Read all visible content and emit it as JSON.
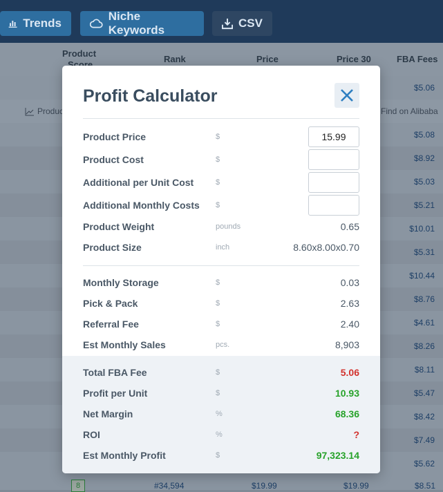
{
  "toolbar": {
    "trends_label": "Trends",
    "niche_label": "Niche Keywords",
    "csv_label": "CSV"
  },
  "table": {
    "headers": {
      "product_score_line1": "Product",
      "product_score_line2": "Score",
      "rank": "Rank",
      "price": "Price",
      "price30": "Price 30",
      "fba_fees": "FBA Fees"
    },
    "tools_row": {
      "product_link": "Produc",
      "alibaba": "Find on Alibaba"
    },
    "fba_fees": [
      "$5.06",
      "$5.08",
      "$8.92",
      "$5.03",
      "$5.21",
      "$10.01",
      "$5.31",
      "$10.44",
      "$8.76",
      "$4.61",
      "$8.26",
      "$8.11",
      "$5.47",
      "$8.42",
      "$7.49",
      "$5.62"
    ],
    "bottom_row": {
      "score": "8",
      "rank": "#34,594",
      "price": "$19.99",
      "price30": "$19.99",
      "fee": "$8.51"
    }
  },
  "modal": {
    "title": "Profit Calculator",
    "inputs": [
      {
        "label": "Product Price",
        "unit": "$",
        "value": "15.99"
      },
      {
        "label": "Product Cost",
        "unit": "$",
        "value": ""
      },
      {
        "label": "Additional per Unit Cost",
        "unit": "$",
        "value": ""
      },
      {
        "label": "Additional Monthly Costs",
        "unit": "$",
        "value": ""
      }
    ],
    "specs": [
      {
        "label": "Product Weight",
        "unit": "pounds",
        "value": "0.65"
      },
      {
        "label": "Product Size",
        "unit": "inch",
        "value": "8.60x8.00x0.70"
      }
    ],
    "fees": [
      {
        "label": "Monthly Storage",
        "unit": "$",
        "value": "0.03"
      },
      {
        "label": "Pick & Pack",
        "unit": "$",
        "value": "2.63"
      },
      {
        "label": "Referral Fee",
        "unit": "$",
        "value": "2.40"
      },
      {
        "label": "Est Monthly Sales",
        "unit": "pcs.",
        "value": "8,903"
      }
    ],
    "summary": [
      {
        "label": "Total FBA Fee",
        "unit": "$",
        "value": "5.06"
      },
      {
        "label": "Profit per Unit",
        "unit": "$",
        "value": "10.93"
      },
      {
        "label": "Net Margin",
        "unit": "%",
        "value": "68.36"
      },
      {
        "label": "ROI",
        "unit": "%",
        "value": "?"
      },
      {
        "label": "Est Monthly Profit",
        "unit": "$",
        "value": "97,323.14"
      }
    ],
    "colors": {
      "negative": "#d2322d",
      "positive": "#27a22a",
      "close": "#2e7fc1"
    }
  }
}
